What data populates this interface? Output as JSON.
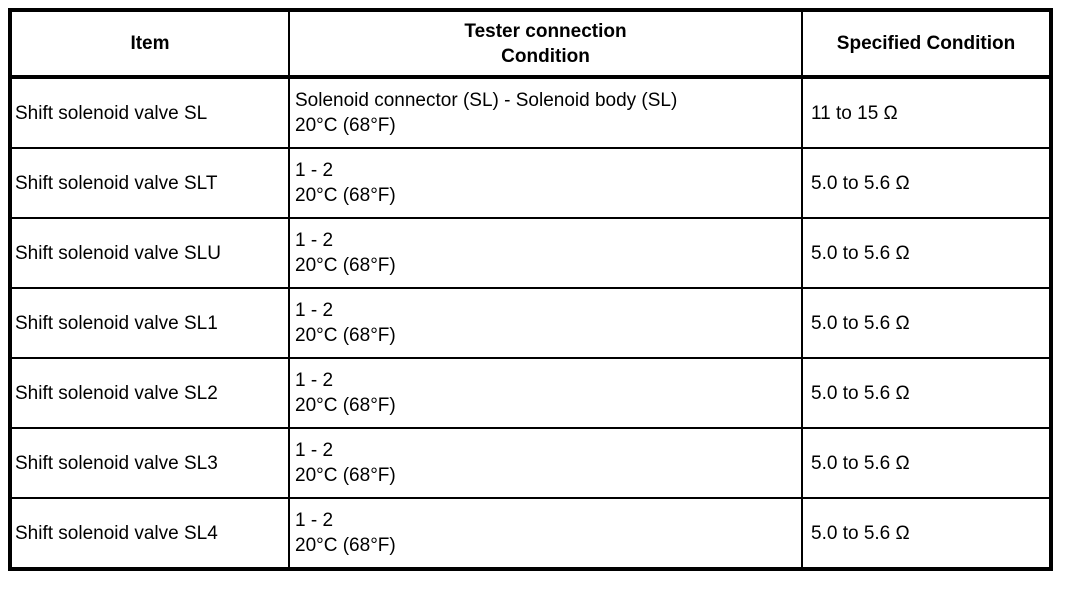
{
  "colors": {
    "background": "#ffffff",
    "border": "#000000",
    "text": "#000000"
  },
  "table": {
    "headers": {
      "item": "Item",
      "tester_line1": "Tester connection",
      "tester_line2": "Condition",
      "specified": "Specified Condition"
    },
    "rows": [
      {
        "item": "Shift solenoid valve SL",
        "connection": "Solenoid connector (SL) - Solenoid body (SL)",
        "condition": "20°C (68°F)",
        "specified": "11 to 15 Ω"
      },
      {
        "item": "Shift solenoid valve SLT",
        "connection": "1 - 2",
        "condition": "20°C (68°F)",
        "specified": "5.0 to 5.6 Ω"
      },
      {
        "item": "Shift solenoid valve SLU",
        "connection": "1 - 2",
        "condition": "20°C (68°F)",
        "specified": "5.0 to 5.6 Ω"
      },
      {
        "item": "Shift solenoid valve SL1",
        "connection": "1 - 2",
        "condition": "20°C (68°F)",
        "specified": "5.0 to 5.6 Ω"
      },
      {
        "item": "Shift solenoid valve SL2",
        "connection": "1 - 2",
        "condition": "20°C (68°F)",
        "specified": "5.0 to 5.6 Ω"
      },
      {
        "item": "Shift solenoid valve SL3",
        "connection": "1 - 2",
        "condition": "20°C (68°F)",
        "specified": "5.0 to 5.6 Ω"
      },
      {
        "item": "Shift solenoid valve SL4",
        "connection": "1 - 2",
        "condition": "20°C (68°F)",
        "specified": "5.0 to 5.6 Ω"
      }
    ]
  }
}
